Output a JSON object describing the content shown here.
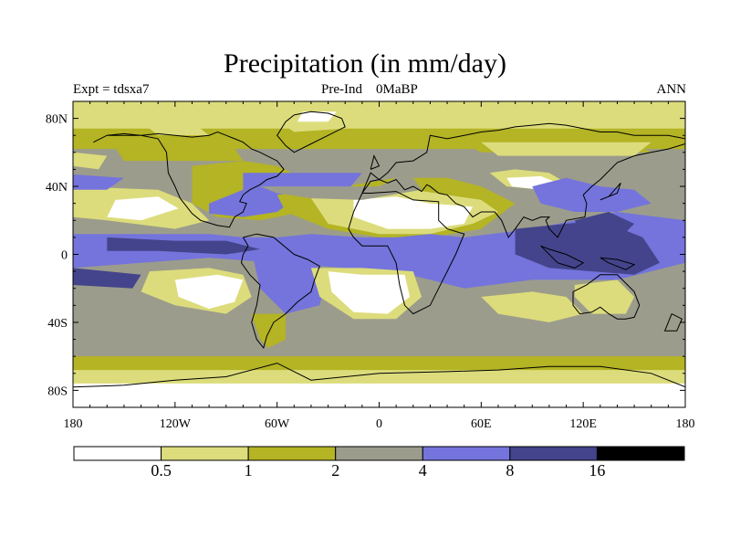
{
  "title": "Precipitation (in mm/day)",
  "experiment_label": "Expt = tdsxa7",
  "run_label": "Pre-Ind    0MaBP",
  "season_label": "ANN",
  "lat_ticks": [
    {
      "value": 80,
      "label": "80N"
    },
    {
      "value": 40,
      "label": "40N"
    },
    {
      "value": 0,
      "label": "0"
    },
    {
      "value": -40,
      "label": "40S"
    },
    {
      "value": -80,
      "label": "80S"
    }
  ],
  "lon_ticks": [
    {
      "value": -180,
      "label": "180"
    },
    {
      "value": -120,
      "label": "120W"
    },
    {
      "value": -60,
      "label": "60W"
    },
    {
      "value": 0,
      "label": "0"
    },
    {
      "value": 60,
      "label": "60E"
    },
    {
      "value": 120,
      "label": "120E"
    },
    {
      "value": 180,
      "label": "180"
    }
  ],
  "colorbar": {
    "colors": [
      "#ffffff",
      "#dcdc7c",
      "#b4b424",
      "#9c9c8c",
      "#7474dc",
      "#44448c",
      "#000000"
    ],
    "boundaries": [
      "0.5",
      "1",
      "2",
      "4",
      "8",
      "16"
    ]
  },
  "palette": {
    "lt05": "#ffffff",
    "b05_1": "#dcdc7c",
    "b1_2": "#b4b424",
    "b2_4": "#9c9c8c",
    "b4_8": "#7474dc",
    "b8_16": "#44448c"
  },
  "precip_regions": [
    {
      "band": "b1_2",
      "lon": [
        -180,
        180,
        180,
        -180
      ],
      "lat": [
        90,
        90,
        -90,
        -90
      ]
    },
    {
      "band": "b2_4",
      "lon": [
        -180,
        180,
        180,
        -180
      ],
      "lat": [
        62,
        62,
        -60,
        -60
      ]
    },
    {
      "band": "b05_1",
      "lon": [
        -180,
        180,
        180,
        -180
      ],
      "lat": [
        90,
        90,
        74,
        74
      ]
    },
    {
      "band": "b05_1",
      "lon": [
        -70,
        -40,
        -20,
        -50
      ],
      "lat": [
        86,
        86,
        74,
        72
      ]
    },
    {
      "band": "lt05",
      "lon": [
        -45,
        -25,
        -30,
        -48
      ],
      "lat": [
        84,
        84,
        78,
        78
      ]
    },
    {
      "band": "b05_1",
      "lon": [
        -140,
        -110,
        -100,
        -130
      ],
      "lat": [
        78,
        78,
        70,
        70
      ]
    },
    {
      "band": "b1_2",
      "lon": [
        -160,
        -90,
        -80,
        -150
      ],
      "lat": [
        70,
        70,
        55,
        55
      ]
    },
    {
      "band": "b1_2",
      "lon": [
        40,
        140,
        160,
        60
      ],
      "lat": [
        70,
        70,
        60,
        60
      ]
    },
    {
      "band": "b05_1",
      "lon": [
        60,
        160,
        150,
        70
      ],
      "lat": [
        66,
        66,
        58,
        58
      ]
    },
    {
      "band": "b05_1",
      "lon": [
        -180,
        -160,
        -165,
        -180
      ],
      "lat": [
        60,
        58,
        50,
        52
      ]
    },
    {
      "band": "b1_2",
      "lon": [
        -110,
        -90,
        -80,
        -60,
        -45,
        -30,
        -25,
        -45,
        -70,
        -95,
        -110
      ],
      "lat": [
        52,
        54,
        55,
        52,
        45,
        40,
        30,
        25,
        20,
        22,
        30
      ]
    },
    {
      "band": "b05_1",
      "lon": [
        -180,
        -130,
        -110,
        -100,
        -120,
        -160,
        -180
      ],
      "lat": [
        40,
        38,
        30,
        20,
        15,
        20,
        22
      ]
    },
    {
      "band": "lt05",
      "lon": [
        -155,
        -130,
        -118,
        -140,
        -160
      ],
      "lat": [
        32,
        34,
        27,
        20,
        22
      ]
    },
    {
      "band": "b4_8",
      "lon": [
        -180,
        -150,
        -160,
        -180
      ],
      "lat": [
        47,
        45,
        38,
        38
      ]
    },
    {
      "band": "b4_8",
      "lon": [
        -100,
        -80,
        -60,
        -50,
        -60,
        -80,
        -100
      ],
      "lat": [
        30,
        38,
        38,
        32,
        25,
        22,
        24
      ]
    },
    {
      "band": "b1_2",
      "lon": [
        -60,
        -20,
        10,
        40,
        60,
        70,
        80,
        60,
        30,
        0,
        -30,
        -55
      ],
      "lat": [
        35,
        40,
        45,
        45,
        40,
        35,
        30,
        15,
        10,
        10,
        15,
        25
      ]
    },
    {
      "band": "b05_1",
      "lon": [
        -40,
        -10,
        20,
        40,
        60,
        70,
        55,
        30,
        0,
        -30
      ],
      "lat": [
        33,
        38,
        38,
        35,
        32,
        25,
        18,
        12,
        12,
        18
      ]
    },
    {
      "band": "lt05",
      "lon": [
        -15,
        10,
        30,
        55,
        50,
        30,
        5,
        -15
      ],
      "lat": [
        32,
        34,
        30,
        28,
        18,
        15,
        15,
        22
      ]
    },
    {
      "band": "b05_1",
      "lon": [
        65,
        80,
        100,
        110,
        95,
        75
      ],
      "lat": [
        48,
        50,
        48,
        42,
        38,
        40
      ]
    },
    {
      "band": "lt05",
      "lon": [
        75,
        95,
        105,
        95,
        78
      ],
      "lat": [
        45,
        46,
        42,
        38,
        40
      ]
    },
    {
      "band": "b4_8",
      "lon": [
        90,
        110,
        130,
        150,
        160,
        140,
        115,
        95
      ],
      "lat": [
        40,
        45,
        40,
        38,
        30,
        25,
        25,
        30
      ]
    },
    {
      "band": "b4_8",
      "lon": [
        -80,
        -10,
        -20,
        -80
      ],
      "lat": [
        48,
        48,
        36,
        36
      ]
    },
    {
      "band": "b2_4",
      "lon": [
        -70,
        0,
        10,
        20,
        25,
        -10,
        -40,
        -60
      ],
      "lat": [
        40,
        40,
        45,
        45,
        38,
        32,
        33,
        36
      ]
    },
    {
      "band": "b4_8",
      "lon": [
        -180,
        -100,
        -80,
        -60,
        -40,
        -10,
        10,
        30,
        50,
        90,
        140,
        180,
        180,
        140,
        90,
        50,
        30,
        10,
        -20,
        -60,
        -100,
        -140,
        -180
      ],
      "lat": [
        12,
        12,
        10,
        10,
        12,
        10,
        10,
        12,
        10,
        15,
        25,
        20,
        -5,
        -15,
        -15,
        -20,
        -15,
        -10,
        -8,
        -5,
        -2,
        -5,
        -8
      ]
    },
    {
      "band": "b8_16",
      "lon": [
        -160,
        -120,
        -90,
        -70,
        -90,
        -130,
        -160
      ],
      "lat": [
        10,
        8,
        8,
        3,
        0,
        2,
        2
      ]
    },
    {
      "band": "b8_16",
      "lon": [
        80,
        110,
        130,
        155,
        165,
        150,
        125,
        100,
        80
      ],
      "lat": [
        15,
        18,
        20,
        10,
        -5,
        -12,
        -10,
        -8,
        0
      ]
    },
    {
      "band": "b8_16",
      "lon": [
        115,
        135,
        150,
        140,
        120
      ],
      "lat": [
        20,
        25,
        18,
        8,
        10
      ]
    },
    {
      "band": "b8_16",
      "lon": [
        -180,
        -140,
        -145,
        -180
      ],
      "lat": [
        -8,
        -12,
        -20,
        -18
      ]
    },
    {
      "band": "b4_8",
      "lon": [
        -75,
        -45,
        -30,
        -35,
        -55,
        -70
      ],
      "lat": [
        2,
        -2,
        -10,
        -30,
        -35,
        -20
      ]
    },
    {
      "band": "b05_1",
      "lon": [
        -135,
        -100,
        -80,
        -75,
        -90,
        -120,
        -140
      ],
      "lat": [
        -10,
        -8,
        -12,
        -25,
        -35,
        -30,
        -22
      ]
    },
    {
      "band": "lt05",
      "lon": [
        -120,
        -95,
        -80,
        -85,
        -100,
        -118
      ],
      "lat": [
        -15,
        -12,
        -15,
        -28,
        -32,
        -25
      ]
    },
    {
      "band": "b05_1",
      "lon": [
        -40,
        -10,
        20,
        25,
        10,
        -15,
        -35
      ],
      "lat": [
        -8,
        -8,
        -10,
        -25,
        -38,
        -38,
        -25
      ]
    },
    {
      "band": "lt05",
      "lon": [
        -30,
        -10,
        15,
        18,
        5,
        -15,
        -28
      ],
      "lat": [
        -10,
        -12,
        -12,
        -25,
        -35,
        -34,
        -22
      ]
    },
    {
      "band": "b05_1",
      "lon": [
        60,
        90,
        110,
        120,
        100,
        70
      ],
      "lat": [
        -25,
        -22,
        -25,
        -35,
        -40,
        -35
      ]
    },
    {
      "band": "b05_1",
      "lon": [
        115,
        140,
        150,
        145,
        125,
        115
      ],
      "lat": [
        -18,
        -15,
        -25,
        -35,
        -35,
        -25
      ]
    },
    {
      "band": "b1_2",
      "lon": [
        -180,
        180,
        180,
        -180
      ],
      "lat": [
        -60,
        -60,
        -72,
        -72
      ]
    },
    {
      "band": "b05_1",
      "lon": [
        -180,
        180,
        180,
        -180
      ],
      "lat": [
        -68,
        -68,
        -80,
        -80
      ]
    },
    {
      "band": "lt05",
      "lon": [
        -180,
        180,
        180,
        -180
      ],
      "lat": [
        -76,
        -76,
        -90,
        -90
      ]
    },
    {
      "band": "b1_2",
      "lon": [
        -75,
        -55,
        -55,
        -65,
        -70
      ],
      "lat": [
        -35,
        -35,
        -50,
        -55,
        -50
      ]
    }
  ],
  "coastlines": [
    {
      "lon": [
        -168,
        -160,
        -150,
        -140,
        -130,
        -125,
        -124,
        -120,
        -117,
        -110,
        -105,
        -95,
        -88,
        -85,
        -80,
        -78,
        -82,
        -80,
        -76,
        -70,
        -66,
        -60,
        -56,
        -60,
        -66,
        -70,
        -75,
        -80,
        -85,
        -90,
        -95,
        -100,
        -110,
        -120,
        -130,
        -140,
        -150,
        -160,
        -168
      ],
      "lat": [
        66,
        70,
        71,
        70,
        68,
        60,
        48,
        40,
        33,
        24,
        20,
        17,
        16,
        22,
        25,
        30,
        31,
        35,
        38,
        41,
        44,
        46,
        50,
        55,
        58,
        60,
        62,
        66,
        68,
        70,
        72,
        70,
        69,
        70,
        71,
        70,
        70,
        70,
        66
      ]
    },
    {
      "lon": [
        -50,
        -40,
        -30,
        -22,
        -20,
        -30,
        -40,
        -50,
        -55,
        -60,
        -55,
        -50
      ],
      "lat": [
        82,
        84,
        83,
        80,
        75,
        70,
        65,
        60,
        64,
        70,
        78,
        82
      ]
    },
    {
      "lon": [
        -80,
        -72,
        -62,
        -50,
        -42,
        -35,
        -38,
        -40,
        -48,
        -55,
        -62,
        -66,
        -68,
        -72,
        -75,
        -72,
        -70,
        -76,
        -81,
        -80,
        -77,
        -80
      ],
      "lat": [
        10,
        12,
        10,
        0,
        -3,
        -7,
        -15,
        -22,
        -28,
        -35,
        -40,
        -48,
        -55,
        -50,
        -40,
        -30,
        -18,
        -12,
        -5,
        0,
        5,
        10
      ]
    },
    {
      "lon": [
        -10,
        -5,
        10,
        20,
        35,
        35,
        40,
        50,
        45,
        40,
        35,
        30,
        20,
        15,
        12,
        10,
        5,
        -5,
        -10,
        -15,
        -18,
        -15,
        -10
      ],
      "lat": [
        36,
        36,
        37,
        32,
        31,
        20,
        15,
        12,
        0,
        -10,
        -20,
        -30,
        -35,
        -30,
        -18,
        -5,
        5,
        5,
        5,
        10,
        15,
        25,
        36
      ]
    },
    {
      "lon": [
        -10,
        -5,
        0,
        5,
        10,
        20,
        28,
        30,
        40,
        50,
        60,
        70,
        80,
        90,
        100,
        110,
        120,
        130,
        140,
        150,
        160,
        170,
        180,
        180,
        170,
        160,
        150,
        140,
        130,
        125,
        120,
        122,
        121,
        110,
        105,
        100,
        98,
        100,
        95,
        90,
        85,
        80,
        76,
        72,
        68,
        60,
        55,
        50,
        45,
        40,
        35,
        30,
        28,
        25,
        20,
        15,
        10,
        5,
        0,
        -5,
        -10
      ],
      "lat": [
        36,
        43,
        44,
        48,
        54,
        55,
        60,
        70,
        68,
        70,
        72,
        73,
        75,
        76,
        77,
        76,
        74,
        72,
        72,
        70,
        70,
        70,
        68,
        65,
        62,
        60,
        58,
        54,
        44,
        40,
        35,
        30,
        22,
        20,
        10,
        15,
        20,
        22,
        22,
        20,
        22,
        15,
        10,
        20,
        25,
        25,
        22,
        28,
        30,
        35,
        36,
        40,
        41,
        37,
        40,
        38,
        44,
        42,
        44,
        48,
        36
      ]
    },
    {
      "lon": [
        114,
        122,
        130,
        140,
        150,
        153,
        150,
        145,
        140,
        135,
        130,
        125,
        118,
        114,
        114
      ],
      "lat": [
        -22,
        -18,
        -12,
        -12,
        -22,
        -30,
        -37,
        -38,
        -38,
        -35,
        -31,
        -34,
        -35,
        -30,
        -22
      ]
    },
    {
      "lon": [
        -180,
        -150,
        -120,
        -90,
        -60,
        -40,
        0,
        40,
        70,
        100,
        130,
        160,
        180
      ],
      "lat": [
        -78,
        -77,
        -74,
        -72,
        -64,
        -74,
        -70,
        -69,
        -68,
        -66,
        -66,
        -70,
        -78
      ]
    },
    {
      "lon": [
        -5,
        0,
        -3,
        -5
      ],
      "lat": [
        50,
        52,
        58,
        50
      ]
    },
    {
      "lon": [
        130,
        140,
        142,
        135,
        130
      ],
      "lat": [
        32,
        36,
        42,
        34,
        32
      ]
    },
    {
      "lon": [
        95,
        105,
        115,
        120,
        110,
        100,
        95
      ],
      "lat": [
        5,
        -5,
        -8,
        -5,
        0,
        3,
        5
      ]
    },
    {
      "lon": [
        130,
        140,
        150,
        145,
        135,
        130
      ],
      "lat": [
        -2,
        -3,
        -6,
        -9,
        -5,
        -2
      ]
    },
    {
      "lon": [
        172,
        178,
        175,
        168,
        172
      ],
      "lat": [
        -35,
        -38,
        -45,
        -45,
        -35
      ]
    }
  ]
}
